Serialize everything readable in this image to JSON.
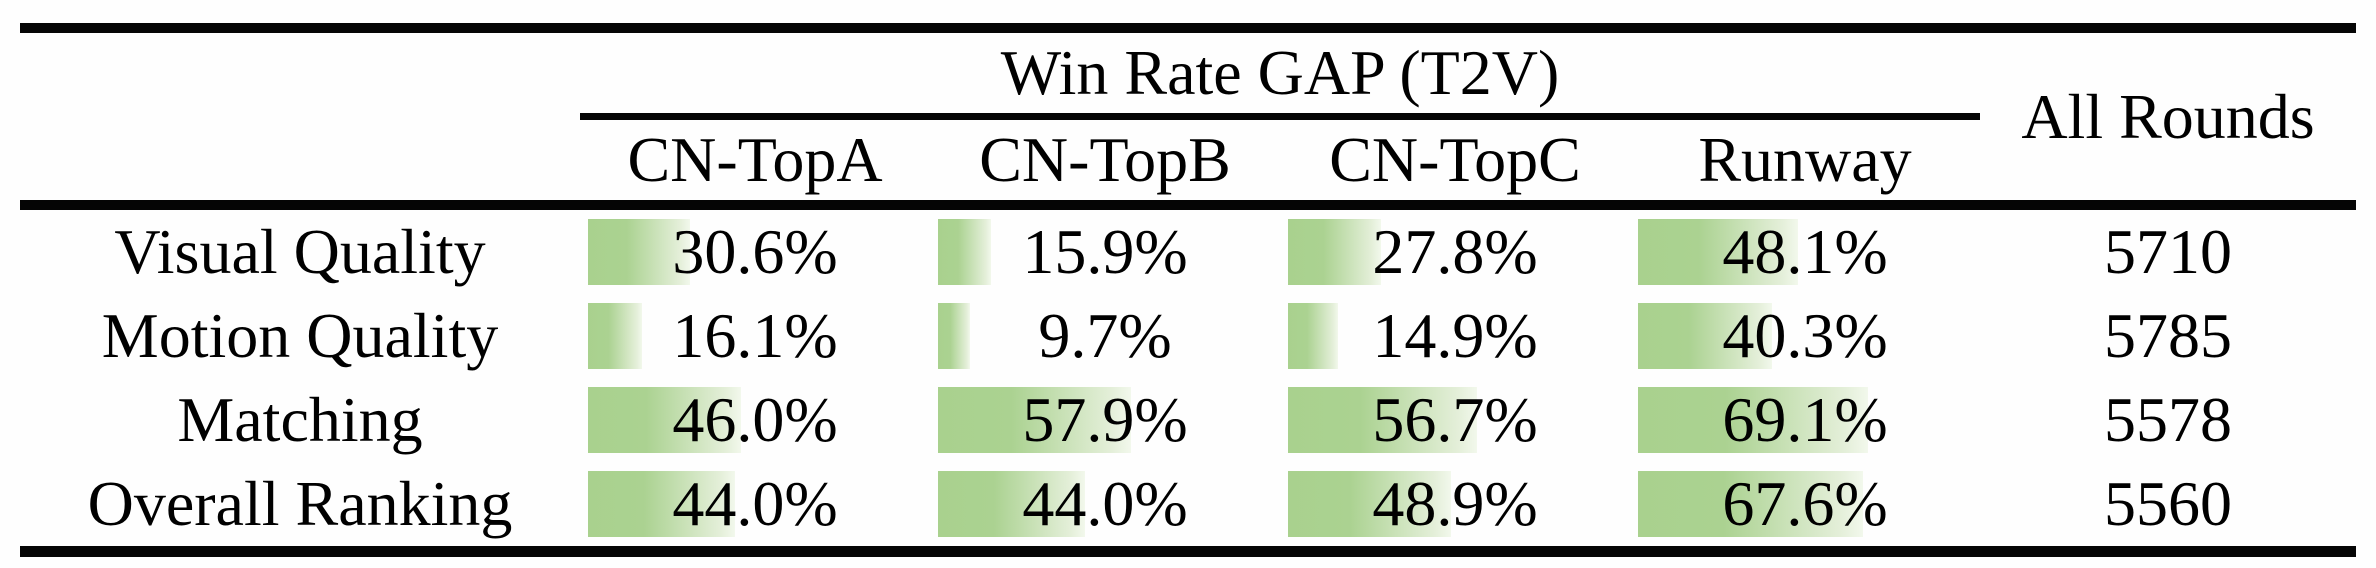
{
  "table": {
    "group_header": "Win Rate GAP (T2V)",
    "all_rounds_header": "All Rounds",
    "columns": [
      "CN-TopA",
      "CN-TopB",
      "CN-TopC",
      "Runway"
    ],
    "row_header_column": [
      "Visual Quality",
      "Motion Quality",
      "Matching",
      "Overall Ranking"
    ],
    "rows": [
      {
        "label": "Visual Quality",
        "values": [
          {
            "text": "30.6%",
            "pct": 30.6
          },
          {
            "text": "15.9%",
            "pct": 15.9
          },
          {
            "text": "27.8%",
            "pct": 27.8
          },
          {
            "text": "48.1%",
            "pct": 48.1
          }
        ],
        "all_rounds": "5710"
      },
      {
        "label": "Motion Quality",
        "values": [
          {
            "text": "16.1%",
            "pct": 16.1
          },
          {
            "text": "9.7%",
            "pct": 9.7
          },
          {
            "text": "14.9%",
            "pct": 14.9
          },
          {
            "text": "40.3%",
            "pct": 40.3
          }
        ],
        "all_rounds": "5785"
      },
      {
        "label": "Matching",
        "values": [
          {
            "text": "46.0%",
            "pct": 46.0
          },
          {
            "text": "57.9%",
            "pct": 57.9
          },
          {
            "text": "56.7%",
            "pct": 56.7
          },
          {
            "text": "69.1%",
            "pct": 69.1
          }
        ],
        "all_rounds": "5578"
      },
      {
        "label": "Overall Ranking",
        "values": [
          {
            "text": "44.0%",
            "pct": 44.0
          },
          {
            "text": "44.0%",
            "pct": 44.0
          },
          {
            "text": "48.9%",
            "pct": 48.9
          },
          {
            "text": "67.6%",
            "pct": 67.6
          }
        ],
        "all_rounds": "5560"
      }
    ],
    "bar_color": "#a9d18e",
    "rule_color": "#050505"
  },
  "chart_data": {
    "type": "table",
    "title": "Win Rate GAP (T2V)",
    "categories": [
      "Visual Quality",
      "Motion Quality",
      "Matching",
      "Overall Ranking"
    ],
    "series": [
      {
        "name": "CN-TopA",
        "values": [
          30.6,
          16.1,
          46.0,
          44.0
        ]
      },
      {
        "name": "CN-TopB",
        "values": [
          15.9,
          9.7,
          57.9,
          44.0
        ]
      },
      {
        "name": "CN-TopC",
        "values": [
          27.8,
          14.9,
          56.7,
          48.9
        ]
      },
      {
        "name": "Runway",
        "values": [
          48.1,
          40.3,
          69.1,
          67.6
        ]
      },
      {
        "name": "All Rounds",
        "values": [
          5710,
          5785,
          5578,
          5560
        ]
      }
    ],
    "value_unit": "%",
    "bars": "in-cell green gradient data bars proportional to percentage"
  }
}
